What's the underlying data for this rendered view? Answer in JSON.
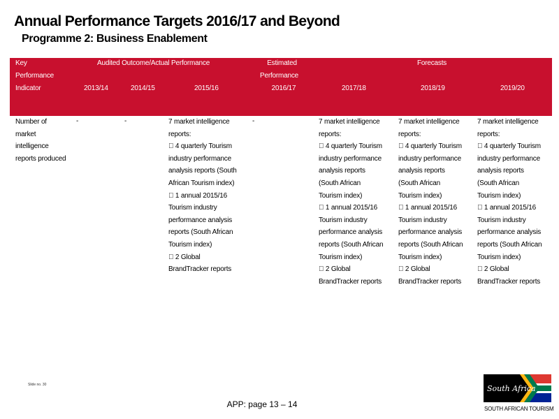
{
  "page": {
    "title": "Annual Performance Targets 2016/17 and Beyond",
    "subtitle": "Programme 2: Business Enablement"
  },
  "table": {
    "headers": {
      "indicator": [
        "Key",
        "Performance",
        "Indicator"
      ],
      "audited_group": "Audited Outcome/Actual Performance",
      "estimated": [
        "Estimated",
        "Performance",
        "2016/17"
      ],
      "forecasts_group": "Forecasts",
      "years": {
        "y1314": "2013/14",
        "y1415": "2014/15",
        "y1516": "2015/16",
        "y1718": "2017/18",
        "y1819": "2018/19",
        "y1920": "2019/20"
      }
    },
    "row": {
      "indicator_lines": [
        "Number of",
        "market",
        "intelligence",
        "reports produced"
      ],
      "y1314": "-",
      "y1415": "-",
      "estimated": "-",
      "y1516_lines": [
        "7 market intelligence",
        "reports:",
        " 4 quarterly Tourism",
        "industry performance",
        "analysis reports (South",
        "African Tourism index)",
        " 1 annual 2015/16",
        "Tourism industry",
        "performance analysis",
        "reports (South African",
        "Tourism index)",
        " 2 Global",
        "BrandTracker reports"
      ],
      "forecast_lines": [
        "7 market intelligence",
        "reports:",
        " 4 quarterly Tourism",
        "industry performance",
        "analysis reports",
        "(South African",
        "Tourism index)",
        " 1 annual 2015/16",
        "Tourism industry",
        "performance analysis",
        "reports (South African",
        "Tourism index)",
        " 2 Global",
        "BrandTracker reports"
      ]
    }
  },
  "slide_number": "Slide no. 30",
  "footer_text": "APP: page 13 – 14",
  "logo": {
    "wordmark": "South Africa",
    "caption": "SOUTH AFRICAN TOURISM"
  },
  "colors": {
    "header_red": "#c8102e",
    "flag_green": "#007a4d",
    "flag_yellow": "#ffb612",
    "flag_red": "#de3831",
    "flag_blue": "#002395"
  }
}
